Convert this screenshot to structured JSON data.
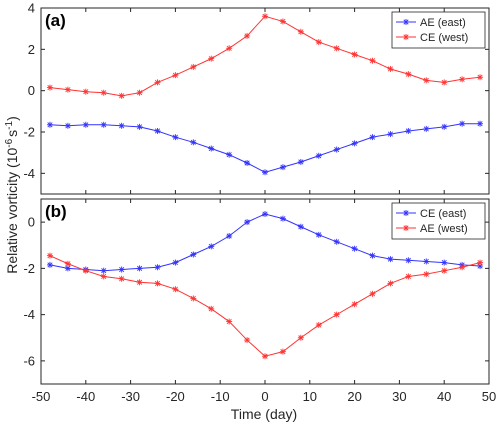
{
  "chart_data": [
    {
      "type": "line",
      "panel_label": "(a)",
      "xlim": [
        -50,
        50
      ],
      "ylim": [
        -5,
        4
      ],
      "x_ticks": [
        -50,
        -40,
        -30,
        -20,
        -10,
        0,
        10,
        20,
        30,
        40,
        50
      ],
      "y_ticks": [
        -4,
        -2,
        0,
        2,
        4
      ],
      "grid": false,
      "legend": "top-right",
      "x": [
        -48,
        -44,
        -40,
        -36,
        -32,
        -28,
        -24,
        -20,
        -16,
        -12,
        -8,
        -4,
        0,
        4,
        8,
        12,
        16,
        20,
        24,
        28,
        32,
        36,
        40,
        44,
        48
      ],
      "series": [
        {
          "name": "AE (east)",
          "color": "#3333ff",
          "marker": "asterisk",
          "values": [
            -1.65,
            -1.7,
            -1.65,
            -1.65,
            -1.7,
            -1.75,
            -1.95,
            -2.25,
            -2.5,
            -2.8,
            -3.1,
            -3.5,
            -3.95,
            -3.7,
            -3.45,
            -3.15,
            -2.85,
            -2.55,
            -2.25,
            -2.1,
            -1.95,
            -1.85,
            -1.75,
            -1.6,
            -1.6
          ]
        },
        {
          "name": "CE (west)",
          "color": "#ff3333",
          "marker": "asterisk",
          "values": [
            0.15,
            0.05,
            -0.05,
            -0.1,
            -0.25,
            -0.1,
            0.4,
            0.75,
            1.15,
            1.55,
            2.05,
            2.65,
            3.6,
            3.35,
            2.85,
            2.35,
            2.05,
            1.75,
            1.45,
            1.05,
            0.8,
            0.5,
            0.4,
            0.55,
            0.65
          ]
        }
      ]
    },
    {
      "type": "line",
      "panel_label": "(b)",
      "xlim": [
        -50,
        50
      ],
      "ylim": [
        -7,
        1
      ],
      "x_ticks": [
        -50,
        -40,
        -30,
        -20,
        -10,
        0,
        10,
        20,
        30,
        40,
        50
      ],
      "y_ticks": [
        -6,
        -4,
        -2,
        0
      ],
      "grid": false,
      "legend": "top-right",
      "x": [
        -48,
        -44,
        -40,
        -36,
        -32,
        -28,
        -24,
        -20,
        -16,
        -12,
        -8,
        -4,
        0,
        4,
        8,
        12,
        16,
        20,
        24,
        28,
        32,
        36,
        40,
        44,
        48
      ],
      "series": [
        {
          "name": "CE (east)",
          "color": "#3333ff",
          "marker": "asterisk",
          "values": [
            -1.85,
            -2.0,
            -2.05,
            -2.1,
            -2.05,
            -2.0,
            -1.95,
            -1.75,
            -1.4,
            -1.05,
            -0.6,
            0.0,
            0.35,
            0.15,
            -0.2,
            -0.55,
            -0.85,
            -1.15,
            -1.45,
            -1.6,
            -1.65,
            -1.7,
            -1.75,
            -1.85,
            -1.9
          ]
        },
        {
          "name": "AE (west)",
          "color": "#ff3333",
          "marker": "asterisk",
          "values": [
            -1.45,
            -1.8,
            -2.1,
            -2.35,
            -2.45,
            -2.6,
            -2.65,
            -2.9,
            -3.3,
            -3.75,
            -4.3,
            -5.1,
            -5.8,
            -5.6,
            -5.0,
            -4.45,
            -4.0,
            -3.55,
            -3.1,
            -2.65,
            -2.35,
            -2.25,
            -2.1,
            -1.95,
            -1.75
          ]
        }
      ]
    }
  ],
  "ylabel_main": "Relative vorticity (10",
  "ylabel_exp1": "-6",
  "ylabel_mid": "s",
  "ylabel_exp2": "-1",
  "ylabel_end": ")",
  "xlabel": "Time (day)"
}
